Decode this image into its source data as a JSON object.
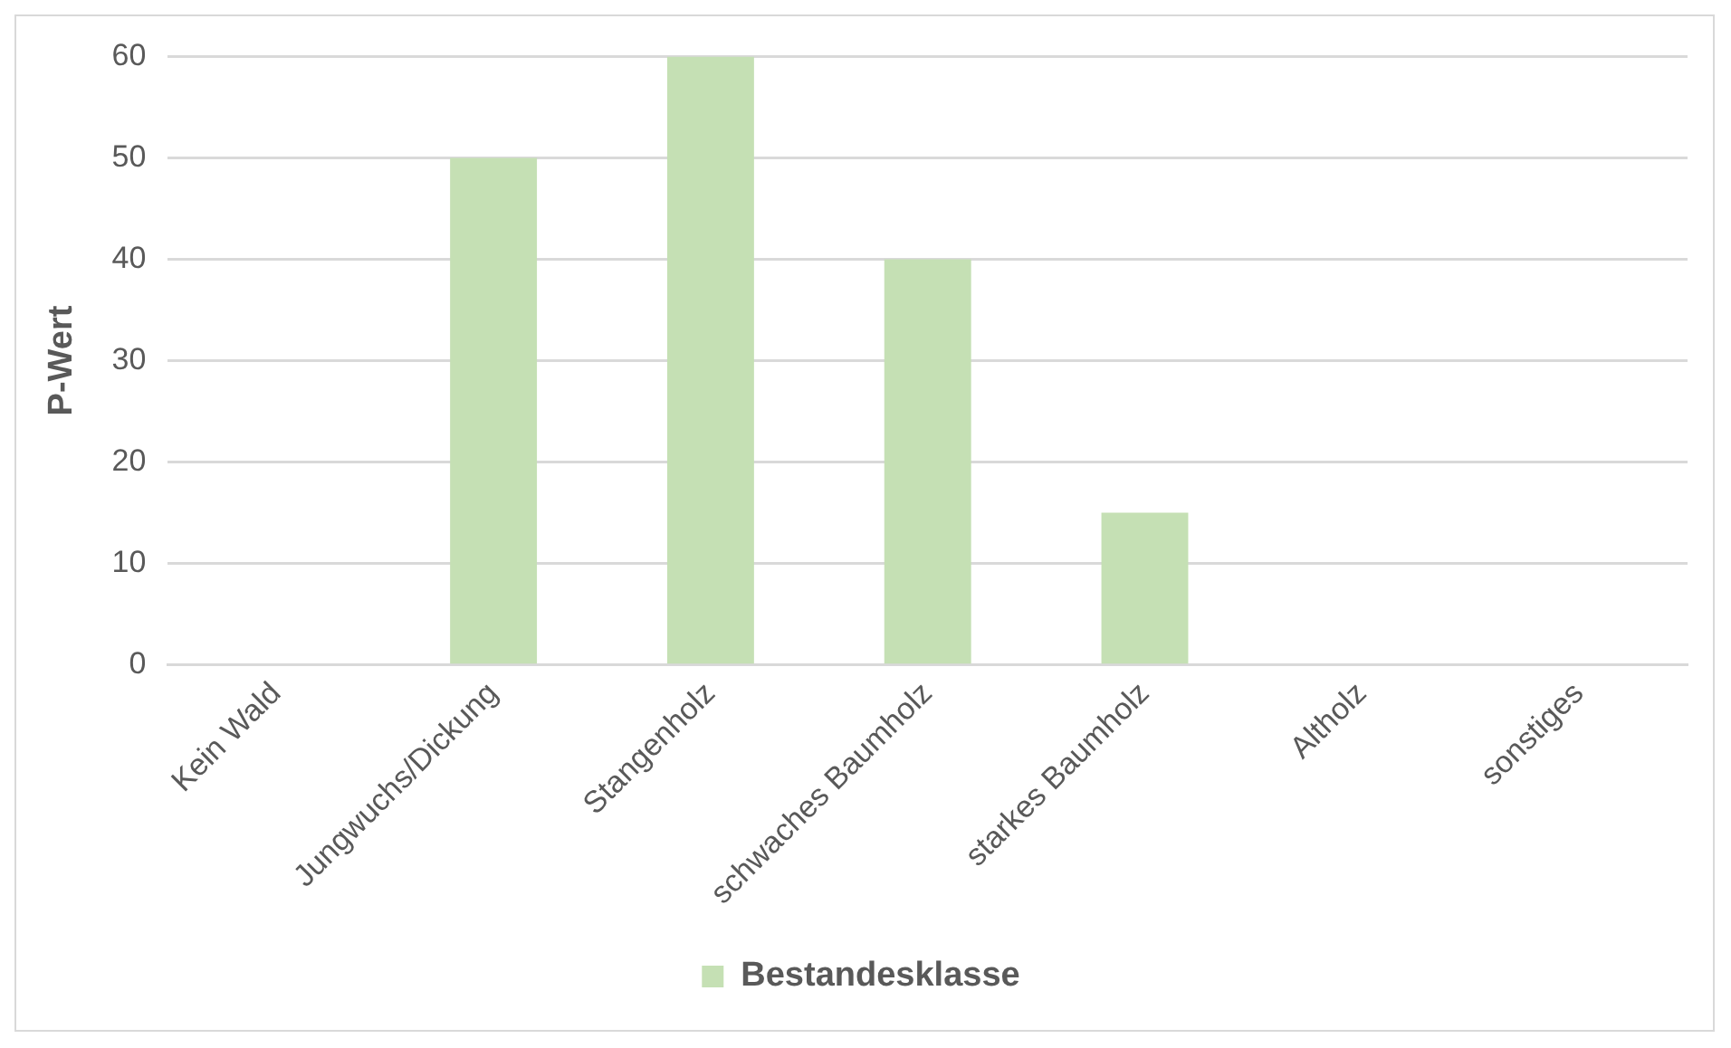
{
  "chart_data": {
    "type": "bar",
    "ylabel": "P-Wert",
    "categories": [
      "Kein Wald",
      "Jungwuchs/Dickung",
      "Stangenholz",
      "schwaches Baumholz",
      "starkes Baumholz",
      "Altholz",
      "sonstiges"
    ],
    "series": [
      {
        "name": "Bestandesklasse",
        "color": "#c5e0b4",
        "values": [
          0,
          50,
          60,
          40,
          15,
          0,
          0
        ]
      }
    ],
    "ylim": [
      0,
      60
    ],
    "yticks": [
      0,
      10,
      20,
      30,
      40,
      50,
      60
    ],
    "grid": "y",
    "legend": "bottom"
  }
}
